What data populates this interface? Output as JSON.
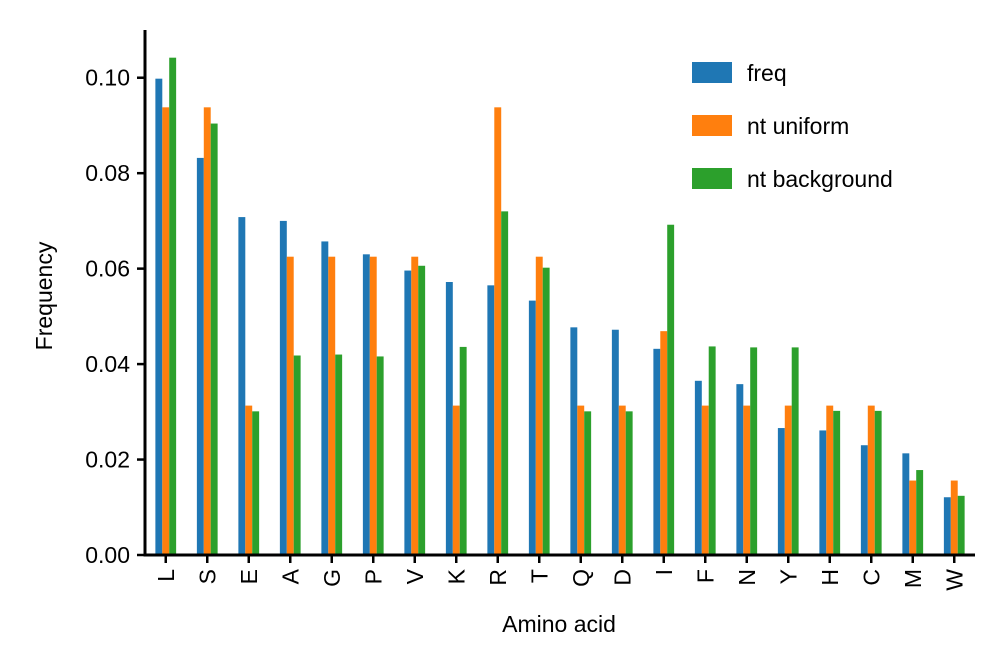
{
  "chart_data": {
    "type": "bar",
    "xlabel": "Amino acid",
    "ylabel": "Frequency",
    "ylim": [
      0,
      0.11
    ],
    "yticks": [
      "0.00",
      "0.02",
      "0.04",
      "0.06",
      "0.08",
      "0.10"
    ],
    "ytick_values": [
      0,
      0.02,
      0.04,
      0.06,
      0.08,
      0.1
    ],
    "grid": false,
    "legend_position": "top-right",
    "categories": [
      "L",
      "S",
      "E",
      "A",
      "G",
      "P",
      "V",
      "K",
      "R",
      "T",
      "Q",
      "D",
      "I",
      "F",
      "N",
      "Y",
      "H",
      "C",
      "M",
      "W"
    ],
    "series": [
      {
        "name": "freq",
        "color": "#1f77b4",
        "values": [
          0.0998,
          0.0832,
          0.0708,
          0.07,
          0.0657,
          0.063,
          0.0596,
          0.0572,
          0.0565,
          0.0533,
          0.0477,
          0.0472,
          0.0432,
          0.0365,
          0.0358,
          0.0266,
          0.0261,
          0.023,
          0.0213,
          0.0121
        ]
      },
      {
        "name": "nt uniform",
        "color": "#ff7f0e",
        "values": [
          0.0938,
          0.0938,
          0.0313,
          0.0625,
          0.0625,
          0.0625,
          0.0625,
          0.0313,
          0.0938,
          0.0625,
          0.0313,
          0.0313,
          0.0469,
          0.0313,
          0.0313,
          0.0313,
          0.0313,
          0.0313,
          0.0156,
          0.0156
        ]
      },
      {
        "name": "nt background",
        "color": "#2ca02c",
        "values": [
          0.1042,
          0.0904,
          0.0301,
          0.0418,
          0.042,
          0.0416,
          0.0606,
          0.0436,
          0.072,
          0.0602,
          0.0301,
          0.0301,
          0.0692,
          0.0437,
          0.0435,
          0.0435,
          0.0302,
          0.0302,
          0.0178,
          0.0124
        ]
      }
    ]
  }
}
